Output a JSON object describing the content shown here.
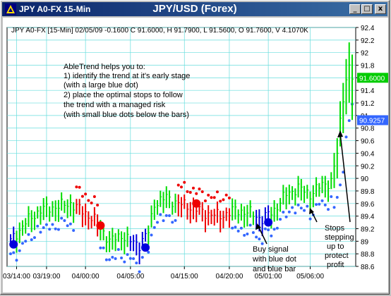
{
  "window": {
    "title_left": "JPY A0-FX 15-Min",
    "title_center": "JPY/USD (Forex)",
    "minimize_label": "_",
    "maximize_label": "□",
    "close_label": "x"
  },
  "chart_data": {
    "type": "candlestick",
    "info_line": "JPY A0-FX [15-Min] 02/05/09  -0.1600 C 91.6000, H 91.7900, L 91.5600, O 91.7600, V 4.1070K",
    "ylim": [
      88.6,
      92.4
    ],
    "y_ticks": [
      "92.4",
      "92.2",
      "92",
      "91.8",
      "91.6",
      "91.4",
      "91.2",
      "91",
      "90.8",
      "90.6",
      "90.4",
      "90.2",
      "90",
      "89.8",
      "89.6",
      "89.4",
      "89.2",
      "89",
      "88.8",
      "88.6"
    ],
    "x_ticks": [
      "03/14:00",
      "03/19:00",
      "04/00:00",
      "04/05:00",
      "04/15:00",
      "04/20:00",
      "05/01:00",
      "05/06:00"
    ],
    "x_tick_index": [
      2,
      12,
      25,
      40,
      58,
      73,
      86,
      100
    ],
    "n_bars": 115,
    "last_price_label": "91.6000",
    "last_price": 91.6,
    "last_price_color": "#00cc00",
    "stop_price_label": "90.9257",
    "stop_price": 90.9257,
    "stop_price_color": "#3366ff",
    "colors": {
      "up": "#00dd00",
      "down": "#ee0000",
      "neutral": "#0000dd",
      "stops": "#3366ff",
      "grid": "#66dddd"
    },
    "trend_segments": [
      {
        "color": "blue",
        "from": 0,
        "to": 1
      },
      {
        "color": "green",
        "from": 2,
        "to": 21
      },
      {
        "color": "red",
        "from": 22,
        "to": 29
      },
      {
        "color": "green",
        "from": 30,
        "to": 39
      },
      {
        "color": "blue",
        "from": 40,
        "to": 45
      },
      {
        "color": "green",
        "from": 46,
        "to": 55
      },
      {
        "color": "red",
        "from": 56,
        "to": 73
      },
      {
        "color": "green",
        "from": 74,
        "to": 81
      },
      {
        "color": "blue",
        "from": 82,
        "to": 86
      },
      {
        "color": "green",
        "from": 87,
        "to": 114
      }
    ],
    "signal_dots": [
      {
        "color": "blue",
        "index": 1,
        "price": 88.95
      },
      {
        "color": "red",
        "index": 30,
        "price": 89.25
      },
      {
        "color": "blue",
        "index": 45,
        "price": 88.9
      },
      {
        "color": "red",
        "index": 62,
        "price": 89.6
      },
      {
        "color": "blue",
        "index": 86,
        "price": 89.3
      }
    ],
    "key_prices": [
      {
        "index": 0,
        "price": 89.0
      },
      {
        "index": 5,
        "price": 89.3
      },
      {
        "index": 10,
        "price": 89.5
      },
      {
        "index": 15,
        "price": 89.55
      },
      {
        "index": 20,
        "price": 89.6
      },
      {
        "index": 25,
        "price": 89.45
      },
      {
        "index": 29,
        "price": 89.3
      },
      {
        "index": 33,
        "price": 89.0
      },
      {
        "index": 37,
        "price": 89.1
      },
      {
        "index": 40,
        "price": 89.0
      },
      {
        "index": 43,
        "price": 88.95
      },
      {
        "index": 46,
        "price": 89.15
      },
      {
        "index": 48,
        "price": 89.6
      },
      {
        "index": 52,
        "price": 89.7
      },
      {
        "index": 56,
        "price": 89.6
      },
      {
        "index": 60,
        "price": 89.55
      },
      {
        "index": 65,
        "price": 89.45
      },
      {
        "index": 70,
        "price": 89.4
      },
      {
        "index": 75,
        "price": 89.5
      },
      {
        "index": 80,
        "price": 89.45
      },
      {
        "index": 84,
        "price": 89.35
      },
      {
        "index": 88,
        "price": 89.5
      },
      {
        "index": 92,
        "price": 89.75
      },
      {
        "index": 96,
        "price": 89.85
      },
      {
        "index": 100,
        "price": 89.75
      },
      {
        "index": 104,
        "price": 89.9
      },
      {
        "index": 107,
        "price": 89.95
      },
      {
        "index": 109,
        "price": 90.4
      },
      {
        "index": 110,
        "price": 90.9
      },
      {
        "index": 111,
        "price": 91.3
      },
      {
        "index": 112,
        "price": 91.6
      },
      {
        "index": 113,
        "price": 91.75
      },
      {
        "index": 114,
        "price": 91.6
      }
    ],
    "annotation_lines": [
      "AbleTrend helps you to:",
      "1) identify the trend at it's early stage",
      "    (with a large blue dot)",
      "2) place the optimal stops to follow",
      "    the trend with a managed risk",
      "    (with small blue dots below the bars)"
    ],
    "callout_buy": [
      "Buy signal",
      "with blue dot",
      "and blue bar"
    ],
    "callout_stops": [
      "Stops",
      "stepping",
      "up to",
      "protect",
      "profit"
    ]
  }
}
